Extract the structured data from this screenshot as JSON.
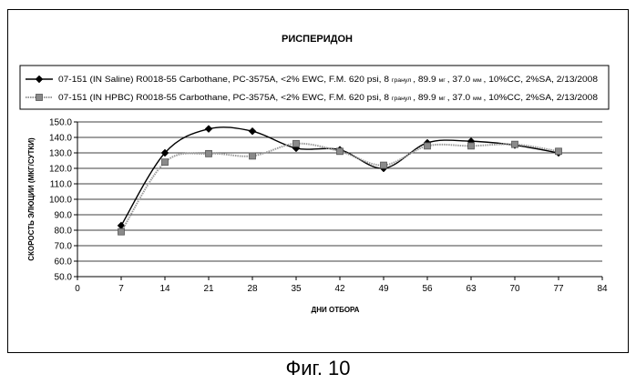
{
  "chart_data": {
    "type": "line",
    "title": "РИСПЕРИДОН",
    "xlabel": "ДНИ ОТБОРА",
    "ylabel": "СКОРОСТЬ ЭЛЮЦИИ (МКГ/СУТКИ)",
    "xlim": [
      0,
      84
    ],
    "ylim": [
      50,
      150
    ],
    "xticks": [
      0,
      7,
      14,
      21,
      28,
      35,
      42,
      49,
      56,
      63,
      70,
      77,
      84
    ],
    "xtick_labels": [
      "0",
      "7",
      "14",
      "21",
      "28",
      "35",
      "42",
      "49",
      "56",
      "63",
      "70",
      "77",
      "84"
    ],
    "yticks": [
      50,
      60,
      70,
      80,
      90,
      100,
      110,
      120,
      130,
      140,
      150
    ],
    "ytick_labels": [
      "50.0",
      "60.0",
      "70.0",
      "80.0",
      "90.0",
      "100.0",
      "110.0",
      "120.0",
      "130.0",
      "140.0",
      "150.0"
    ],
    "grid": "horizontal",
    "legend_position": "top",
    "series": [
      {
        "name": "07-151 (IN Saline) R0018-55 Carbothane, PC-3575A, <2% EWC, F.M. 620 psi, 8 гранул , 89.9 мг , 37.0 мм , 10%CC, 2%SA, 2/13/2008",
        "legend_parts": {
          "main": "07-151 (IN Saline) R0018-55 Carbothane, PC-3575A, <2% EWC, F.M. 620 psi, 8",
          "small1": "гранул",
          "mid1": ", 89.9",
          "small2": "мг",
          "mid2": ", 37.0",
          "small3": "мм",
          "tail": ", 10%CC, 2%SA, 2/13/2008"
        },
        "marker": "diamond",
        "line_style": "solid",
        "x": [
          7,
          14,
          21,
          28,
          35,
          42,
          49,
          56,
          63,
          70,
          77
        ],
        "y": [
          83,
          130,
          145.5,
          144,
          133,
          132,
          120,
          136.5,
          137.5,
          135,
          130
        ]
      },
      {
        "name": "07-151 (IN HPBC) R0018-55 Carbothane, PC-3575A, <2% EWC, F.M. 620 psi, 8 гранул , 89.9 мг , 37.0 мм , 10%CC, 2%SA, 2/13/2008",
        "legend_parts": {
          "main": "07-151 (IN HPBC) R0018-55 Carbothane, PC-3575A, <2% EWC, F.M. 620 psi, 8",
          "small1": "гранул",
          "mid1": ", 89.9",
          "small2": "мг",
          "mid2": ", 37.0",
          "small3": "мм",
          "tail": ", 10%CC, 2%SA, 2/13/2008"
        },
        "marker": "square",
        "line_style": "dotted",
        "x": [
          7,
          14,
          21,
          28,
          35,
          42,
          49,
          56,
          63,
          70,
          77
        ],
        "y": [
          79,
          124,
          129.5,
          128,
          136,
          131,
          122,
          134.5,
          134.5,
          135.5,
          131
        ]
      }
    ]
  },
  "caption": "Фиг. 10"
}
